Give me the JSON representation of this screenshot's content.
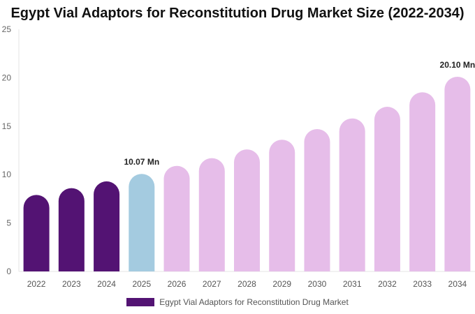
{
  "chart_data": {
    "type": "bar",
    "title": "Egypt Vial Adaptors for Reconstitution Drug Market Size (2022-2034)",
    "xlabel": "",
    "ylabel": "",
    "categories": [
      "2022",
      "2023",
      "2024",
      "2025",
      "2026",
      "2027",
      "2028",
      "2029",
      "2030",
      "2031",
      "2032",
      "2033",
      "2034"
    ],
    "series": [
      {
        "name": "Egypt Vial Adaptors for Reconstitution Drug Market",
        "values": [
          7.9,
          8.6,
          9.3,
          10.07,
          10.9,
          11.7,
          12.6,
          13.6,
          14.7,
          15.8,
          17.0,
          18.5,
          20.1
        ]
      }
    ],
    "ylim": [
      0,
      25
    ],
    "yticks": [
      0,
      5,
      10,
      15,
      20,
      25
    ],
    "data_labels": [
      {
        "category": "2025",
        "text": "10.07 Mn"
      },
      {
        "category": "2034",
        "text": "20.10 Mn"
      }
    ],
    "bar_colors": {
      "historical": "#531373",
      "base_year": "#a4cbe0",
      "forecast": "#e6bde9"
    },
    "color_groups": [
      "historical",
      "historical",
      "historical",
      "base_year",
      "forecast",
      "forecast",
      "forecast",
      "forecast",
      "forecast",
      "forecast",
      "forecast",
      "forecast",
      "forecast"
    ],
    "grid": false,
    "legend_position": "bottom-center",
    "legend_color": "#531373"
  }
}
